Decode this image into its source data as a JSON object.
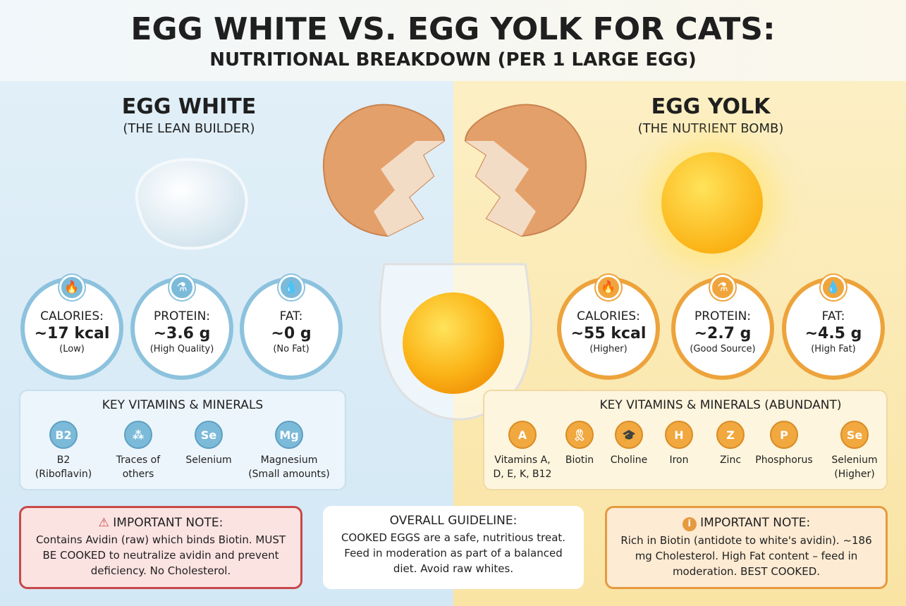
{
  "header": {
    "title": "EGG WHITE VS. EGG YOLK FOR CATS:",
    "subtitle": "NUTRITIONAL BREAKDOWN (PER 1 LARGE EGG)"
  },
  "white": {
    "title": "EGG WHITE",
    "tagline": "(THE LEAN BUILDER)",
    "color": "#8cc2dd",
    "stats": [
      {
        "icon": "flame-icon",
        "label": "CALORIES:",
        "value": "~17 kcal",
        "note": "(Low)"
      },
      {
        "icon": "protein-bottle-icon",
        "label": "PROTEIN:",
        "value": "~3.6 g",
        "note": "(High Quality)"
      },
      {
        "icon": "droplet-icon",
        "label": "FAT:",
        "value": "~0 g",
        "note": "(No Fat)"
      }
    ],
    "vitamins_title": "KEY VITAMINS & MINERALS",
    "vitamins": [
      {
        "icon": "B2",
        "l1": "B2",
        "l2": "(Riboflavin)"
      },
      {
        "icon": "molecule",
        "l1": "Traces of",
        "l2": "others"
      },
      {
        "icon": "Se",
        "l1": "Selenium",
        "l2": ""
      },
      {
        "icon": "Mg",
        "l1": "Magnesium",
        "l2": "(Small amounts)"
      }
    ],
    "note": {
      "title": "IMPORTANT NOTE:",
      "icon": "warning-icon",
      "text": "Contains Avidin (raw) which binds Biotin. MUST BE COOKED to neutralize avidin and prevent deficiency. No Cholesterol."
    }
  },
  "yolk": {
    "title": "EGG YOLK",
    "tagline": "(THE NUTRIENT BOMB)",
    "color": "#eda33b",
    "stats": [
      {
        "icon": "flame-icon",
        "label": "CALORIES:",
        "value": "~55 kcal",
        "note": "(Higher)"
      },
      {
        "icon": "protein-bottle-icon",
        "label": "PROTEIN:",
        "value": "~2.7 g",
        "note": "(Good Source)"
      },
      {
        "icon": "droplet-icon",
        "label": "FAT:",
        "value": "~4.5 g",
        "note": "(High Fat)"
      }
    ],
    "vitamins_title": "KEY VITAMINS & MINERALS (ABUNDANT)",
    "vitamins": [
      {
        "icon": "A",
        "l1": "Vitamins A,",
        "l2": "D, E, K, B12"
      },
      {
        "icon": "ribbon",
        "l1": "Biotin",
        "l2": ""
      },
      {
        "icon": "graduation-cap",
        "l1": "Choline",
        "l2": ""
      },
      {
        "icon": "dumbbell",
        "l1": "Iron",
        "l2": ""
      },
      {
        "icon": "Z",
        "l1": "Zinc",
        "l2": ""
      },
      {
        "icon": "P",
        "l1": "Phosphorus",
        "l2": ""
      },
      {
        "icon": "Se",
        "l1": "Selenium",
        "l2": "(Higher)"
      }
    ],
    "note": {
      "title": "IMPORTANT NOTE:",
      "icon": "info-icon",
      "text": "Rich in Biotin (antidote to white's avidin). ~186 mg Cholesterol. High Fat content – feed in moderation. BEST COOKED."
    }
  },
  "guideline": {
    "title": "OVERALL GUIDELINE:",
    "text": "COOKED EGGS are a safe, nutritious treat. Feed in moderation as part of a balanced diet. Avoid raw whites."
  }
}
